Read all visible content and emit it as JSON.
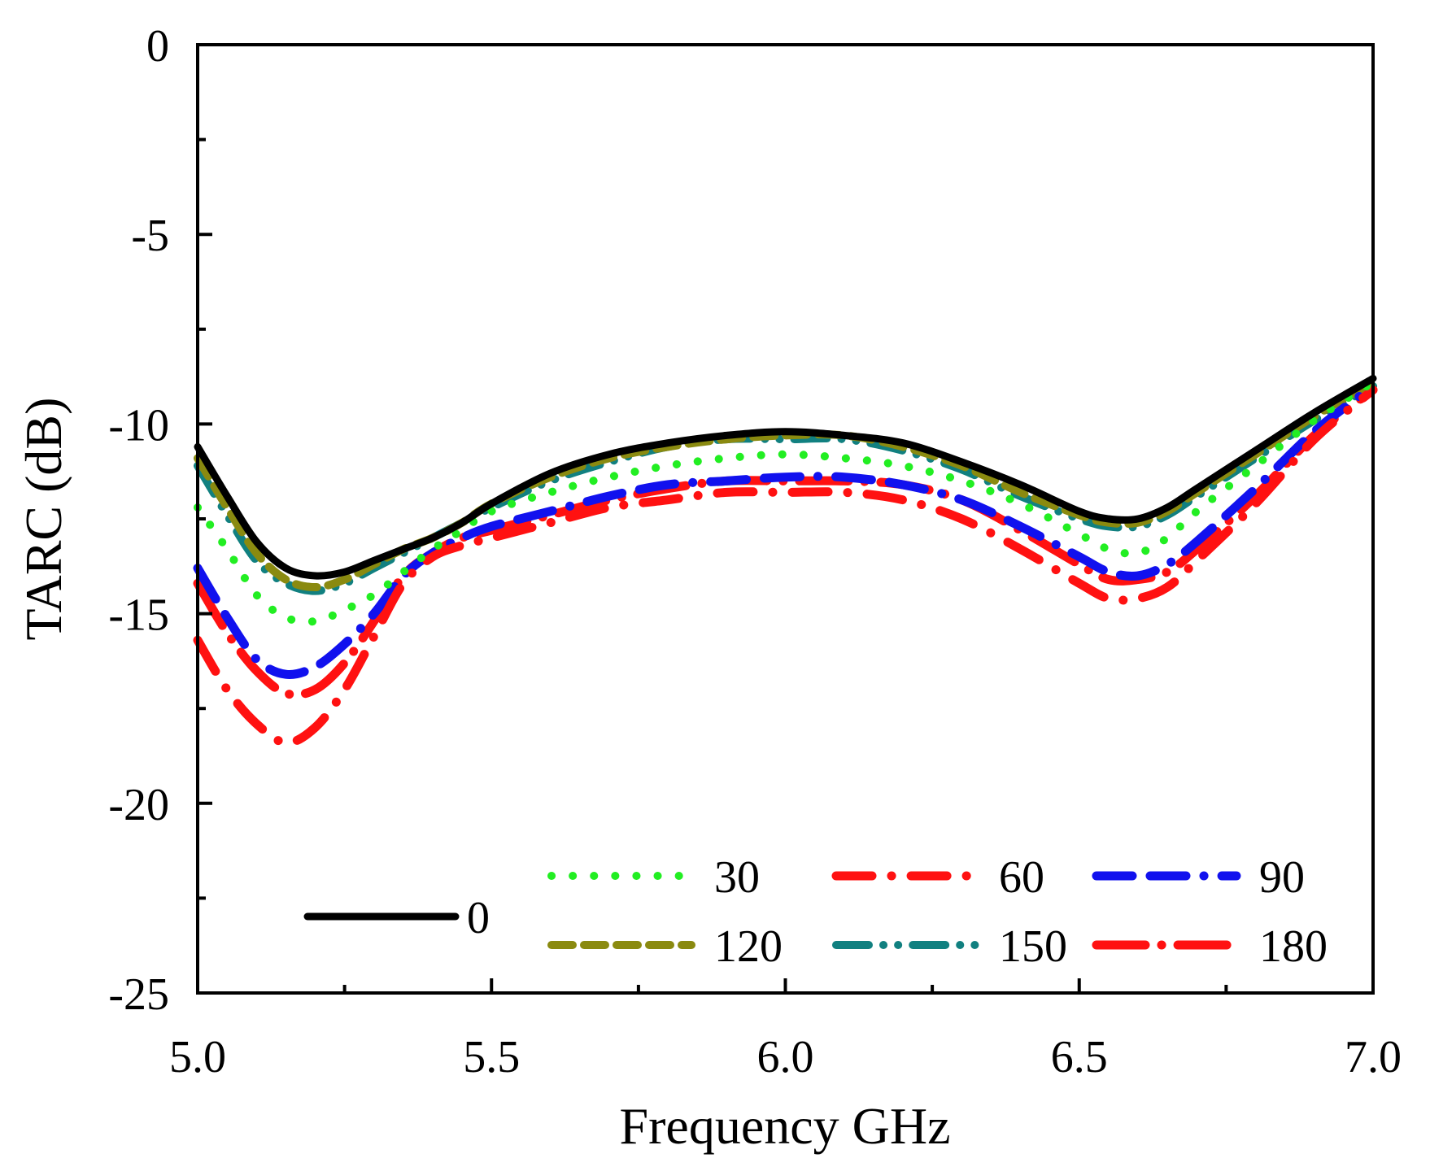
{
  "chart_data": {
    "type": "line",
    "title": "",
    "xlabel": "Frequency GHz",
    "ylabel": "TARC (dB)",
    "xlim": [
      5.0,
      7.0
    ],
    "ylim": [
      -25,
      0
    ],
    "xticks": [
      5.0,
      5.5,
      6.0,
      6.5,
      7.0
    ],
    "xtick_labels": [
      "5.0",
      "5.5",
      "6.0",
      "6.5",
      "7.0"
    ],
    "yticks": [
      0,
      -5,
      -10,
      -15,
      -20,
      -25
    ],
    "ytick_labels": [
      "0",
      "-5",
      "-10",
      "-15",
      "-20",
      "-25"
    ],
    "grid": false,
    "legend_position": "bottom",
    "x": [
      5.0,
      5.05,
      5.1,
      5.15,
      5.2,
      5.25,
      5.3,
      5.35,
      5.4,
      5.45,
      5.5,
      5.6,
      5.7,
      5.8,
      5.9,
      6.0,
      6.1,
      6.2,
      6.3,
      6.4,
      6.5,
      6.55,
      6.6,
      6.65,
      6.7,
      6.8,
      6.9,
      7.0
    ],
    "series": [
      {
        "name": "0",
        "color": "#000000",
        "style": "solid",
        "values": [
          -10.6,
          -11.9,
          -13.1,
          -13.8,
          -14.0,
          -13.9,
          -13.6,
          -13.3,
          -13.0,
          -12.6,
          -12.1,
          -11.3,
          -10.8,
          -10.5,
          -10.3,
          -10.2,
          -10.3,
          -10.5,
          -11.0,
          -11.6,
          -12.3,
          -12.5,
          -12.5,
          -12.2,
          -11.7,
          -10.7,
          -9.7,
          -8.8
        ]
      },
      {
        "name": "30",
        "color": "#22ee22",
        "style": "dot",
        "values": [
          -12.2,
          -13.3,
          -14.5,
          -15.1,
          -15.2,
          -14.9,
          -14.5,
          -13.9,
          -13.3,
          -12.8,
          -12.3,
          -11.8,
          -11.4,
          -11.1,
          -10.9,
          -10.8,
          -10.9,
          -11.1,
          -11.5,
          -12.1,
          -12.9,
          -13.3,
          -13.4,
          -13.0,
          -12.3,
          -11.1,
          -9.9,
          -8.9
        ]
      },
      {
        "name": "60",
        "color": "#ff1111",
        "style": "dashdot",
        "values": [
          -15.7,
          -17.0,
          -17.9,
          -18.4,
          -18.0,
          -17.0,
          -15.6,
          -14.2,
          -13.5,
          -13.2,
          -13.0,
          -12.6,
          -12.2,
          -12.0,
          -11.8,
          -11.8,
          -11.8,
          -12.0,
          -12.5,
          -13.3,
          -14.2,
          -14.6,
          -14.6,
          -14.3,
          -13.6,
          -12.1,
          -10.4,
          -9.1
        ]
      },
      {
        "name": "90",
        "color": "#1111ee",
        "style": "longdash",
        "values": [
          -13.8,
          -15.1,
          -16.2,
          -16.6,
          -16.4,
          -15.8,
          -15.0,
          -14.0,
          -13.4,
          -13.0,
          -12.7,
          -12.3,
          -11.9,
          -11.6,
          -11.5,
          -11.4,
          -11.4,
          -11.6,
          -12.0,
          -12.7,
          -13.5,
          -13.9,
          -14.0,
          -13.7,
          -13.1,
          -11.7,
          -10.2,
          -9.0
        ]
      },
      {
        "name": "120",
        "color": "#8a8a10",
        "style": "dash",
        "values": [
          -10.9,
          -12.2,
          -13.4,
          -14.1,
          -14.3,
          -14.1,
          -13.7,
          -13.3,
          -13.0,
          -12.6,
          -12.1,
          -11.4,
          -10.9,
          -10.6,
          -10.4,
          -10.3,
          -10.3,
          -10.6,
          -11.1,
          -11.8,
          -12.4,
          -12.6,
          -12.6,
          -12.3,
          -11.8,
          -10.8,
          -9.8,
          -8.9
        ]
      },
      {
        "name": "150",
        "color": "#118080",
        "style": "dashdotdot",
        "values": [
          -11.1,
          -12.4,
          -13.6,
          -14.2,
          -14.4,
          -14.2,
          -13.8,
          -13.4,
          -13.0,
          -12.6,
          -12.2,
          -11.5,
          -11.0,
          -10.6,
          -10.4,
          -10.4,
          -10.4,
          -10.7,
          -11.2,
          -11.9,
          -12.5,
          -12.7,
          -12.7,
          -12.4,
          -11.9,
          -10.9,
          -9.9,
          -9.0
        ]
      },
      {
        "name": "180",
        "color": "#ff1111",
        "style": "longdashsparse",
        "values": [
          -14.2,
          -15.5,
          -16.5,
          -17.1,
          -17.0,
          -16.3,
          -15.2,
          -14.0,
          -13.4,
          -13.0,
          -12.8,
          -12.4,
          -12.0,
          -11.7,
          -11.5,
          -11.5,
          -11.5,
          -11.6,
          -12.0,
          -12.8,
          -13.7,
          -14.1,
          -14.1,
          -13.9,
          -13.3,
          -11.9,
          -10.3,
          -9.1
        ]
      }
    ]
  }
}
